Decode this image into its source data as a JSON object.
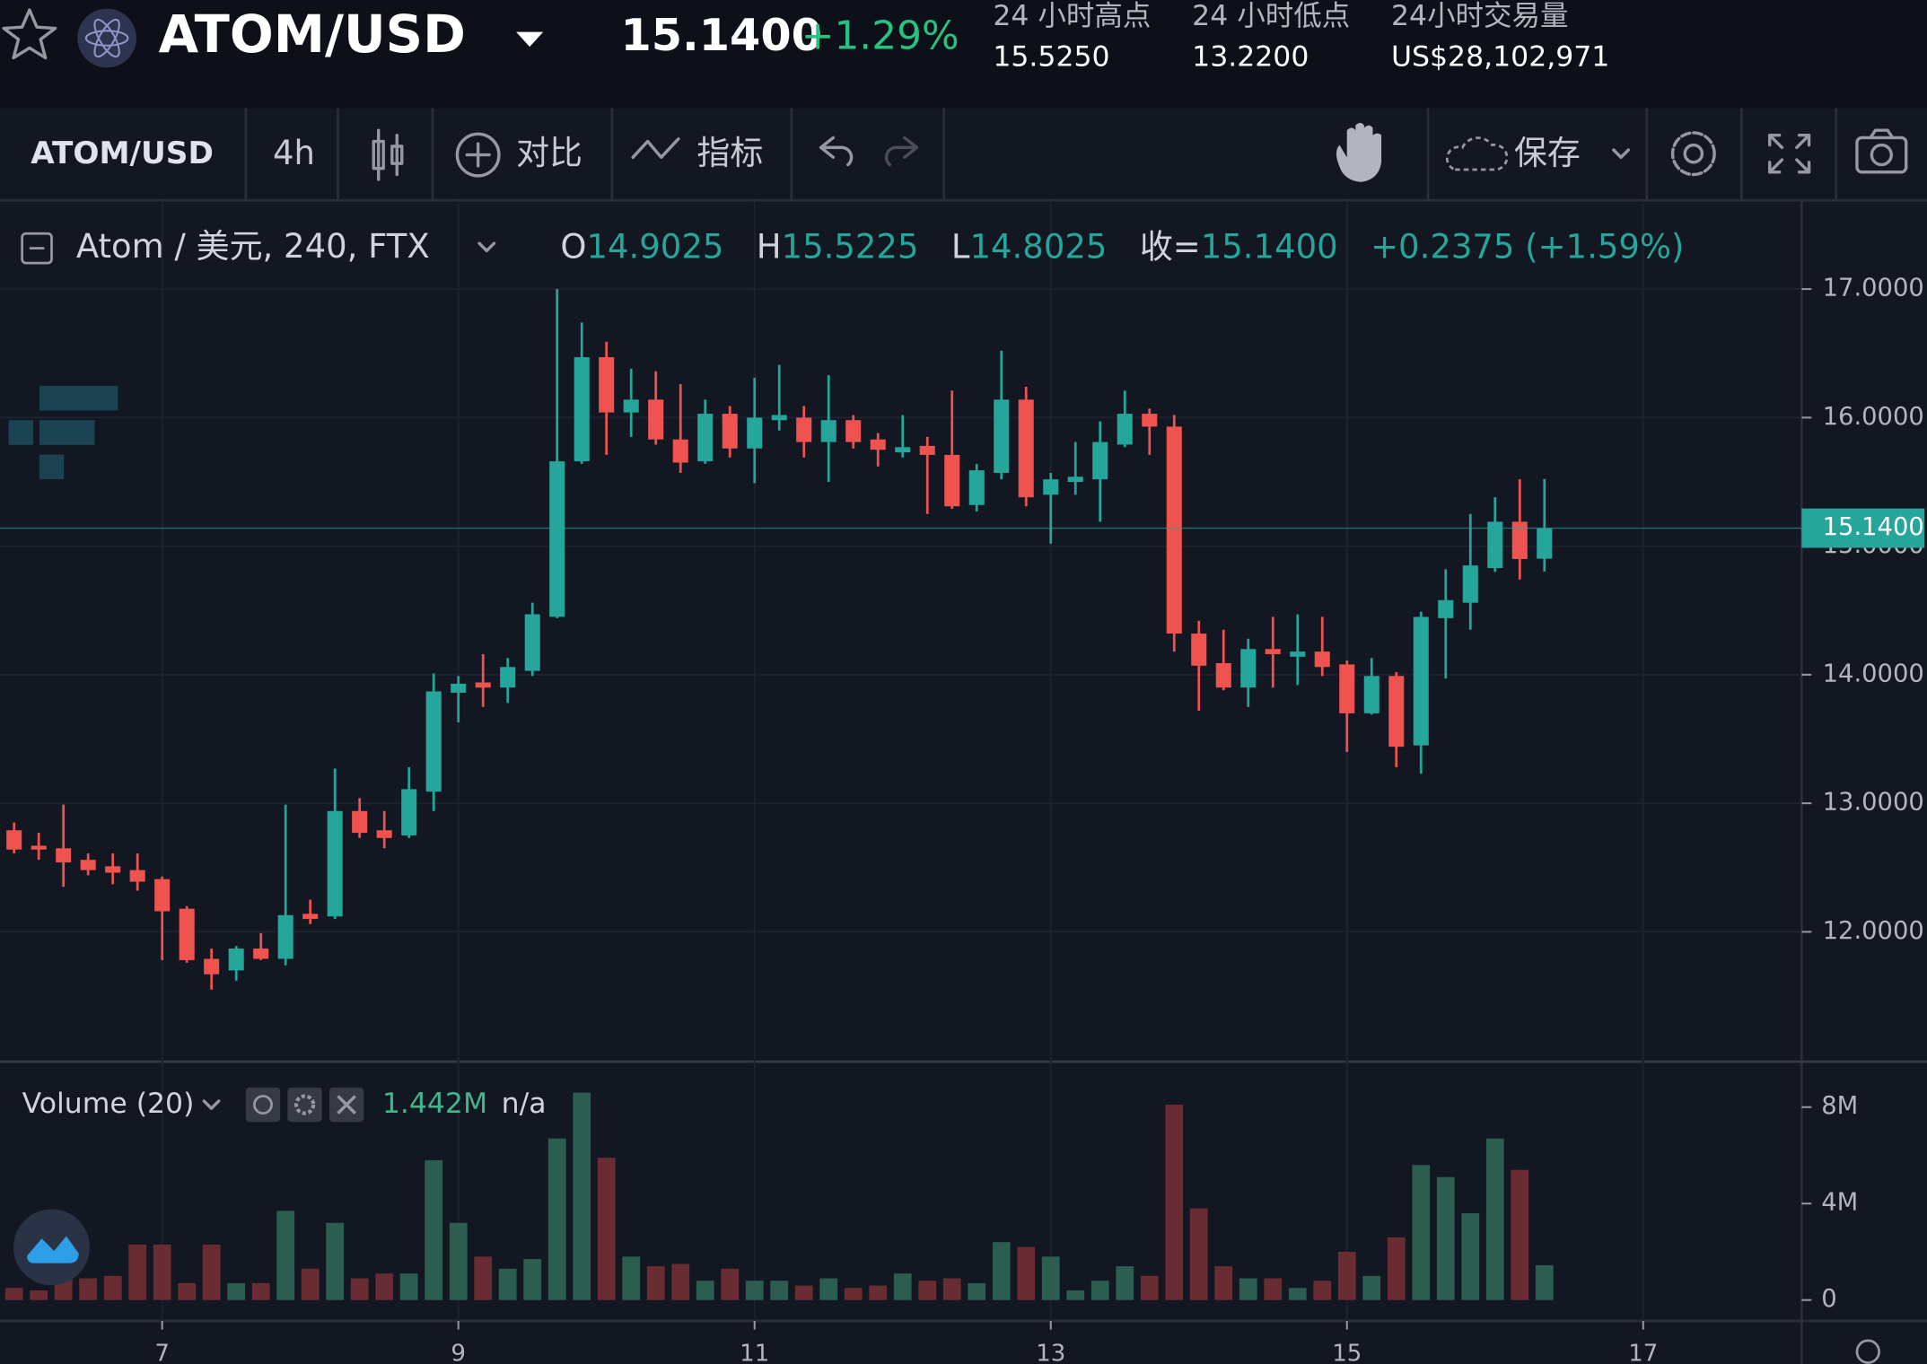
{
  "header": {
    "pair": "ATOM/USD",
    "price": "15.1400",
    "change": "+1.29%",
    "stats": [
      {
        "label": "24 小时高点",
        "value": "15.5250"
      },
      {
        "label": "24 小时低点",
        "value": "13.2200"
      },
      {
        "label": "24小时交易量",
        "value": "US$28,102,971"
      }
    ]
  },
  "toolbar": {
    "symbol": "ATOM/USD",
    "interval": "4h",
    "compare": "对比",
    "indicators": "指标",
    "save": "保存"
  },
  "legend": {
    "symbol": "Atom / 美元, 240, FTX",
    "o": "O",
    "open": "14.9025",
    "h": "H",
    "high": "15.5225",
    "l": "L",
    "low": "14.8025",
    "c": "收=",
    "close": "15.1400",
    "change": "+0.2375 (+1.59%)"
  },
  "volume_legend": {
    "name": "Volume (20)",
    "value": "1.442M",
    "extra": "n/a"
  },
  "chart_data": {
    "type": "candlestick",
    "x": [
      6,
      6.1667,
      6.3333,
      6.5,
      6.6667,
      6.8333,
      7,
      7.1667,
      7.3333,
      7.5,
      7.6667,
      7.8333,
      8,
      8.1667,
      8.3333,
      8.5,
      8.6667,
      8.8333,
      9,
      9.1667,
      9.3333,
      9.5,
      9.6667,
      9.8333,
      10,
      10.1667,
      10.3333,
      10.5,
      10.6667,
      10.8333,
      11,
      11.1667,
      11.3333,
      11.5,
      11.6667,
      11.8333,
      12,
      12.1667,
      12.3333,
      12.5,
      12.6667,
      12.8333,
      13,
      13.1667,
      13.3333,
      13.5,
      13.6667,
      13.8333,
      14,
      14.1667,
      14.3333,
      14.5,
      14.6667,
      14.8333,
      15,
      15.1667,
      15.3333,
      15.5,
      15.6667,
      15.8333,
      16,
      16.1667,
      16.3333
    ],
    "open": [
      12.79,
      12.67,
      12.65,
      12.56,
      12.51,
      12.48,
      12.41,
      12.18,
      11.79,
      11.7,
      11.87,
      11.79,
      12.14,
      12.12,
      12.94,
      12.79,
      12.75,
      13.09,
      13.86,
      13.94,
      13.9,
      14.03,
      14.45,
      15.66,
      16.47,
      16.04,
      16.14,
      15.83,
      15.66,
      16.03,
      15.76,
      15.98,
      16.0,
      15.81,
      15.98,
      15.83,
      15.73,
      15.78,
      15.71,
      15.32,
      15.57,
      16.14,
      15.4,
      15.5,
      15.52,
      15.79,
      16.03,
      15.93,
      14.32,
      14.09,
      13.9,
      14.2,
      14.14,
      14.18,
      14.08,
      13.7,
      13.99,
      13.45,
      14.44,
      14.56,
      14.83,
      15.19,
      14.9025
    ],
    "high": [
      12.85,
      12.77,
      12.99,
      12.61,
      12.61,
      12.61,
      12.43,
      12.2,
      11.87,
      11.89,
      11.99,
      12.99,
      12.25,
      13.27,
      13.04,
      12.94,
      13.28,
      14.01,
      13.99,
      14.16,
      14.13,
      14.56,
      17.0,
      16.74,
      16.59,
      16.38,
      16.36,
      16.26,
      16.14,
      16.09,
      16.31,
      16.41,
      16.09,
      16.33,
      16.02,
      15.88,
      16.02,
      15.85,
      16.21,
      15.64,
      16.52,
      16.24,
      15.57,
      15.81,
      15.97,
      16.21,
      16.07,
      16.02,
      14.42,
      14.35,
      14.28,
      14.45,
      14.47,
      14.45,
      14.11,
      14.13,
      14.02,
      14.49,
      14.82,
      15.25,
      15.38,
      15.52,
      15.5225
    ],
    "low": [
      12.61,
      12.56,
      12.35,
      12.44,
      12.37,
      12.32,
      11.78,
      11.76,
      11.55,
      11.62,
      11.78,
      11.74,
      12.06,
      12.1,
      12.73,
      12.65,
      12.73,
      12.94,
      13.63,
      13.75,
      13.78,
      13.99,
      14.44,
      15.64,
      15.71,
      15.85,
      15.79,
      15.57,
      15.64,
      15.69,
      15.49,
      15.9,
      15.69,
      15.5,
      15.76,
      15.62,
      15.69,
      15.25,
      15.29,
      15.27,
      15.52,
      15.31,
      15.02,
      15.4,
      15.19,
      15.77,
      15.71,
      14.18,
      13.72,
      13.88,
      13.75,
      13.9,
      13.92,
      13.99,
      13.4,
      13.69,
      13.28,
      13.23,
      13.97,
      14.35,
      14.8,
      14.74,
      14.8025
    ],
    "close": [
      12.64,
      12.64,
      12.54,
      12.48,
      12.46,
      12.39,
      12.16,
      11.78,
      11.67,
      11.87,
      11.79,
      12.13,
      12.1,
      12.94,
      12.77,
      12.73,
      13.11,
      13.87,
      13.93,
      13.9,
      14.06,
      14.47,
      15.66,
      16.47,
      16.04,
      16.14,
      15.83,
      15.65,
      16.03,
      15.76,
      16.0,
      16.02,
      15.81,
      15.98,
      15.81,
      15.75,
      15.77,
      15.71,
      15.31,
      15.59,
      16.14,
      15.38,
      15.52,
      15.54,
      15.81,
      16.03,
      15.93,
      14.32,
      14.07,
      13.9,
      14.2,
      14.16,
      14.18,
      14.06,
      13.7,
      13.99,
      13.44,
      14.45,
      14.58,
      14.85,
      15.19,
      14.9,
      15.14
    ],
    "volume": [
      500000,
      400000,
      900000,
      900000,
      1000000,
      2300000,
      2300000,
      700000,
      2300000,
      700000,
      700000,
      3700000,
      1300000,
      3200000,
      900000,
      1100000,
      1100000,
      5800000,
      3200000,
      1800000,
      1300000,
      1700000,
      6700000,
      8600000,
      5900000,
      1800000,
      1400000,
      1500000,
      800000,
      1300000,
      800000,
      800000,
      600000,
      900000,
      500000,
      600000,
      1100000,
      800000,
      900000,
      700000,
      2400000,
      2200000,
      1800000,
      400000,
      800000,
      1400000,
      1000000,
      8100000,
      3800000,
      1400000,
      900000,
      900000,
      500000,
      800000,
      2000000,
      1000000,
      2600000,
      5600000,
      5100000,
      3600000,
      6700000,
      5400000,
      1442000
    ],
    "up_color": "#26a69a",
    "down_color": "#ef5350",
    "volume_up_color": "#2c5e50",
    "volume_down_color": "#6a2c33",
    "xlim": [
      5.905,
      18.07
    ],
    "xticks": [
      7,
      9,
      11,
      13,
      15,
      17
    ],
    "ylim": [
      10.99,
      17.69
    ],
    "yticks": [
      {
        "value": 12,
        "label": "12.0000"
      },
      {
        "value": 13,
        "label": "13.0000"
      },
      {
        "value": 14,
        "label": "14.0000"
      },
      {
        "value": 15,
        "label": "15.0000"
      },
      {
        "value": 16,
        "label": "16.0000"
      },
      {
        "value": 17,
        "label": "17.0000"
      }
    ],
    "last_price": {
      "value": 15.14,
      "label": "15.1400"
    },
    "y2lim": [
      0,
      9885000
    ],
    "y2ticks": [
      {
        "value": 0,
        "label": "0"
      },
      {
        "value": 4000000,
        "label": "4M"
      },
      {
        "value": 8000000,
        "label": "8M"
      }
    ],
    "grid": true
  }
}
